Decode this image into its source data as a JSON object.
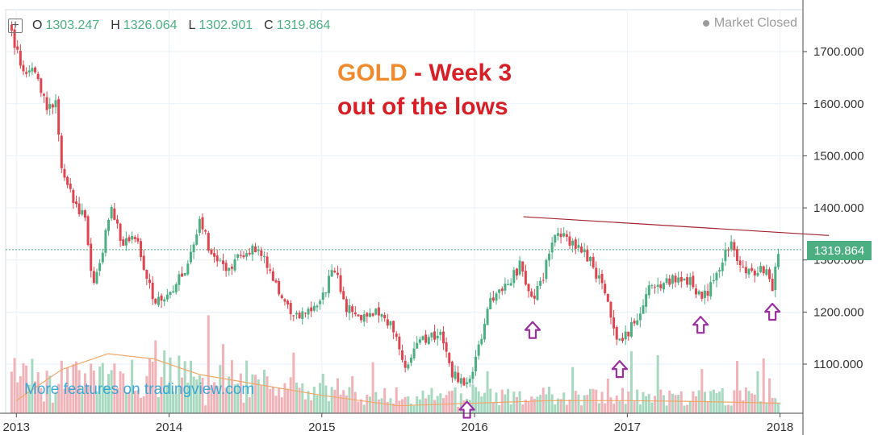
{
  "header": {
    "ohlc": [
      {
        "key": "O",
        "value": "1303.247"
      },
      {
        "key": "H",
        "value": "1326.064"
      },
      {
        "key": "L",
        "value": "1302.901"
      },
      {
        "key": "C",
        "value": "1319.864"
      }
    ],
    "market_status": "Market Closed"
  },
  "annotation": {
    "line1_gold": "GOLD",
    "line1_rest": " - Week 3",
    "line2": "out of the lows"
  },
  "promo_text": "More features on tradingview.com",
  "last_price_label": "1319.864",
  "colors": {
    "up": "#4caf82",
    "down": "#e0454f",
    "volume_up": "#a6d9bf",
    "volume_down": "#f2b3b8",
    "moving_average": "#f0a868",
    "trendline": "#a3242f",
    "arrow": "#9b2fa0",
    "grid": "#e9f2f8",
    "price_line": "#4caf82"
  },
  "chart_data": {
    "type": "candlestick",
    "instrument": "GOLD",
    "interval": "weekly",
    "x_ticks": [
      "2013",
      "2014",
      "2015",
      "2016",
      "2017",
      "2018"
    ],
    "y_ticks": [
      "1700.000",
      "1600.000",
      "1500.000",
      "1400.000",
      "1300.000",
      "1200.000",
      "1100.000"
    ],
    "ylim": [
      1000,
      1760
    ],
    "grid": true,
    "last_close": 1319.864,
    "price_path": [
      [
        2012.95,
        1750
      ],
      [
        2013.0,
        1700
      ],
      [
        2013.05,
        1665
      ],
      [
        2013.1,
        1670
      ],
      [
        2013.15,
        1640
      ],
      [
        2013.2,
        1590
      ],
      [
        2013.26,
        1605
      ],
      [
        2013.3,
        1470
      ],
      [
        2013.35,
        1440
      ],
      [
        2013.4,
        1395
      ],
      [
        2013.45,
        1385
      ],
      [
        2013.5,
        1240
      ],
      [
        2013.55,
        1300
      ],
      [
        2013.62,
        1395
      ],
      [
        2013.7,
        1330
      ],
      [
        2013.78,
        1345
      ],
      [
        2013.85,
        1260
      ],
      [
        2013.92,
        1220
      ],
      [
        2014.0,
        1230
      ],
      [
        2014.1,
        1280
      ],
      [
        2014.2,
        1375
      ],
      [
        2014.3,
        1295
      ],
      [
        2014.4,
        1285
      ],
      [
        2014.5,
        1320
      ],
      [
        2014.6,
        1315
      ],
      [
        2014.7,
        1250
      ],
      [
        2014.8,
        1200
      ],
      [
        2014.88,
        1190
      ],
      [
        2015.0,
        1225
      ],
      [
        2015.08,
        1290
      ],
      [
        2015.15,
        1210
      ],
      [
        2015.25,
        1190
      ],
      [
        2015.35,
        1205
      ],
      [
        2015.45,
        1180
      ],
      [
        2015.55,
        1100
      ],
      [
        2015.62,
        1140
      ],
      [
        2015.7,
        1150
      ],
      [
        2015.78,
        1165
      ],
      [
        2015.85,
        1085
      ],
      [
        2015.95,
        1062
      ],
      [
        2016.0,
        1095
      ],
      [
        2016.1,
        1230
      ],
      [
        2016.18,
        1240
      ],
      [
        2016.3,
        1290
      ],
      [
        2016.38,
        1215
      ],
      [
        2016.45,
        1270
      ],
      [
        2016.52,
        1350
      ],
      [
        2016.6,
        1340
      ],
      [
        2016.68,
        1330
      ],
      [
        2016.75,
        1300
      ],
      [
        2016.82,
        1260
      ],
      [
        2016.9,
        1185
      ],
      [
        2016.95,
        1140
      ],
      [
        2017.05,
        1180
      ],
      [
        2017.15,
        1250
      ],
      [
        2017.25,
        1255
      ],
      [
        2017.35,
        1270
      ],
      [
        2017.42,
        1255
      ],
      [
        2017.48,
        1225
      ],
      [
        2017.55,
        1250
      ],
      [
        2017.62,
        1290
      ],
      [
        2017.68,
        1345
      ],
      [
        2017.75,
        1280
      ],
      [
        2017.82,
        1275
      ],
      [
        2017.9,
        1280
      ],
      [
        2017.95,
        1250
      ],
      [
        2018.0,
        1320
      ]
    ],
    "moving_average": [
      [
        2013.0,
        1030
      ],
      [
        2013.3,
        1090
      ],
      [
        2013.6,
        1120
      ],
      [
        2013.9,
        1110
      ],
      [
        2014.2,
        1080
      ],
      [
        2014.6,
        1060
      ],
      [
        2015.0,
        1040
      ],
      [
        2015.5,
        1020
      ],
      [
        2016.0,
        1025
      ],
      [
        2016.5,
        1030
      ],
      [
        2017.0,
        1030
      ],
      [
        2017.5,
        1028
      ],
      [
        2018.0,
        1025
      ]
    ],
    "trendline": [
      [
        2016.32,
        1383
      ],
      [
        2018.32,
        1347
      ]
    ],
    "swing_low_arrows": [
      2015.95,
      2016.38,
      2016.95,
      2017.48,
      2017.95
    ]
  }
}
